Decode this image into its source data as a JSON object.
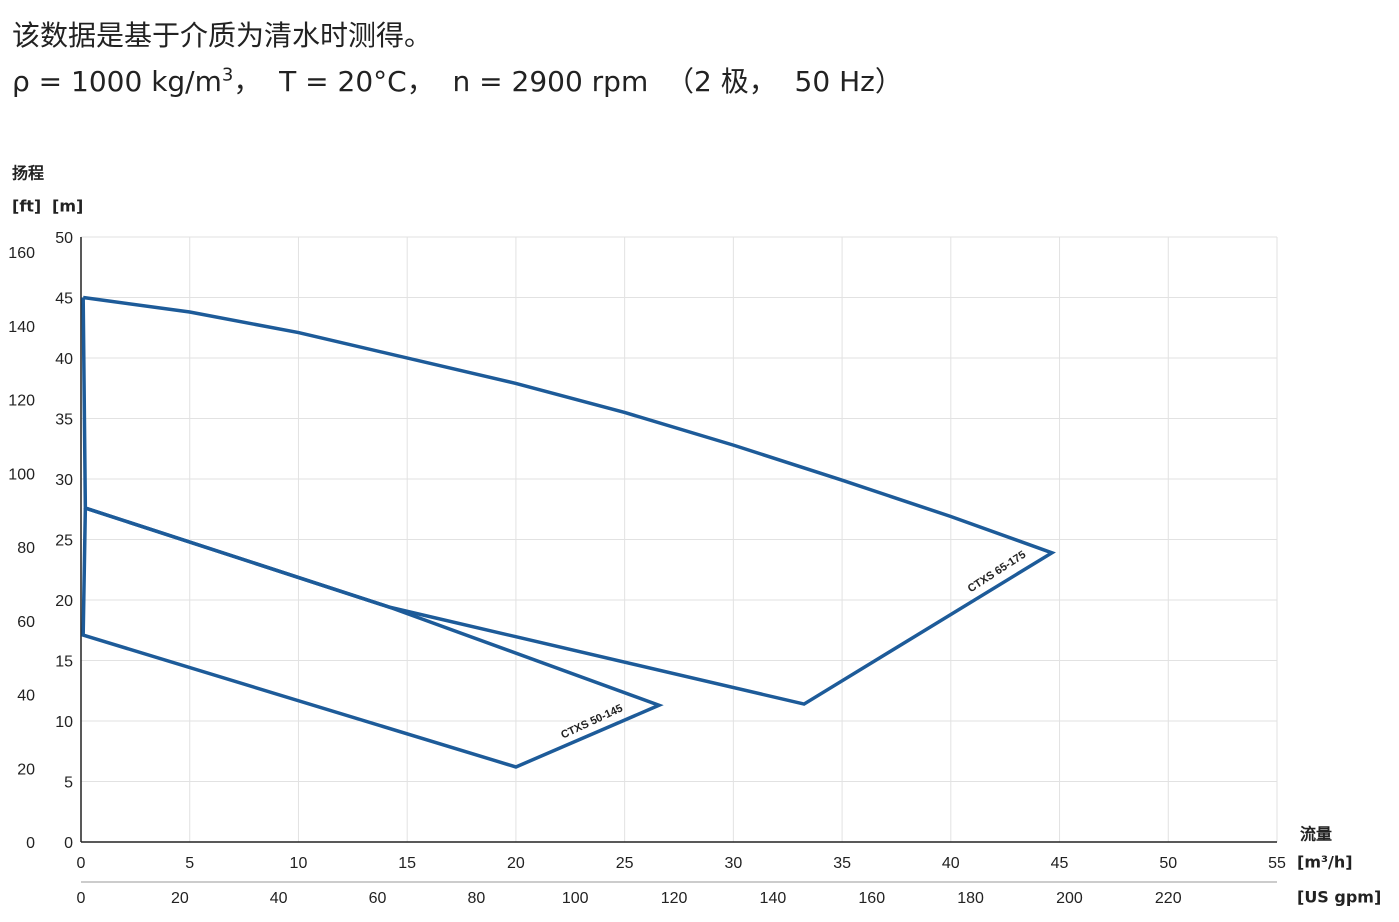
{
  "header": {
    "line1": "该数据是基于介质为清水时测得。",
    "line2": {
      "prefix": "ρ = 1000 kg/m",
      "sup": "3",
      "suffix": "，  T = 20°C，  n = 2900 rpm  （2 极，  50 Hz）"
    }
  },
  "chart_data": {
    "type": "line",
    "y_title": "扬程",
    "y2_label": "[ft]",
    "y_label": "[m]",
    "x_title": "流量",
    "x_label": "[m³/h]",
    "x2_label": "[US gpm]",
    "xlim": [
      0,
      55
    ],
    "xticks": [
      0,
      5,
      10,
      15,
      20,
      25,
      30,
      35,
      40,
      45,
      50,
      55
    ],
    "x2lim": [
      0,
      242
    ],
    "x2ticks": [
      0,
      20,
      40,
      60,
      80,
      100,
      120,
      140,
      160,
      180,
      200,
      220
    ],
    "ylim": [
      0,
      50
    ],
    "yticks": [
      0,
      5,
      10,
      15,
      20,
      25,
      30,
      35,
      40,
      45,
      50
    ],
    "y2lim": [
      0,
      164
    ],
    "y2ticks": [
      0,
      20,
      40,
      60,
      80,
      100,
      120,
      140,
      160
    ],
    "grid": true,
    "series": [
      {
        "name": "CTXS 65-175",
        "color": "#1d5b99",
        "x": [
          0.1,
          5,
          10,
          20,
          25,
          30,
          35,
          40,
          44.65,
          33.25,
          14.2,
          0.2,
          0.1
        ],
        "values": [
          45,
          43.8,
          42.1,
          37.9,
          35.5,
          32.8,
          29.9,
          26.9,
          23.9,
          11.4,
          19.4,
          27.6,
          45
        ]
      },
      {
        "name": "CTXS 50-145",
        "color": "#1d5b99",
        "x": [
          0.2,
          14.2,
          26.58,
          20,
          0.1,
          0.2
        ],
        "values": [
          27.6,
          19.4,
          11.3,
          6.2,
          17.1,
          27.6
        ]
      }
    ]
  }
}
